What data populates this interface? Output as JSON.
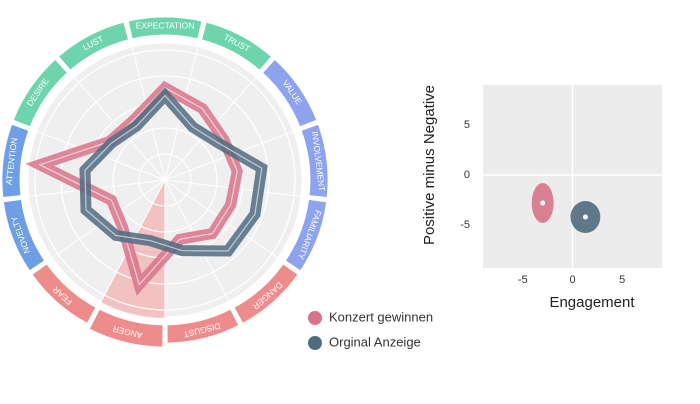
{
  "chart_data": [
    {
      "type": "radar",
      "categories": [
        "EXPECTATION",
        "TRUST",
        "VALUE",
        "INVOLVEMENT",
        "FAMILIARITY",
        "DANGER",
        "DISGUST",
        "ANGER",
        "FEAR",
        "NOVELTY",
        "ATTENTION",
        "DESIRE",
        "LUST"
      ],
      "colors": [
        "#6dd4ac",
        "#6dd4ac",
        "#8ea3ef",
        "#8ea3ef",
        "#8ea3ef",
        "#ee8c8c",
        "#ee8c8c",
        "#ee8c8c",
        "#ee8c8c",
        "#6e9fe6",
        "#6e9fe6",
        "#6dd4ac",
        "#6dd4ac"
      ],
      "rlim": [
        0,
        100
      ],
      "rticks": [
        20,
        40,
        60,
        80,
        100
      ],
      "grid": true,
      "series": [
        {
          "name": "Konzert gewinnen",
          "color": "#d9738a",
          "values": [
            71,
            62,
            55,
            56,
            54,
            55,
            47,
            83,
            49,
            44,
            97,
            52,
            52
          ]
        },
        {
          "name": "Orginal Anzeige",
          "color": "#4f6b80",
          "values": [
            65,
            46,
            50,
            75,
            74,
            73,
            56,
            48,
            57,
            65,
            62,
            50,
            47
          ]
        }
      ]
    },
    {
      "type": "scatter",
      "xlabel": "Engagement",
      "ylabel": "Positive minus Negative",
      "xlim": [
        -9,
        9
      ],
      "ylim": [
        -9.3,
        9
      ],
      "xticks": [
        -5,
        0,
        5
      ],
      "yticks": [
        -5,
        0,
        5
      ],
      "series": [
        {
          "color": "#d9738a",
          "x": [
            -3
          ],
          "y": [
            -2.8
          ],
          "xerr": [
            1.1
          ],
          "yerr": [
            2
          ]
        },
        {
          "color": "#4f6b80",
          "x": [
            1.3
          ],
          "y": [
            -4.2
          ],
          "xerr": [
            1.5
          ],
          "yerr": [
            1.6
          ]
        }
      ]
    }
  ]
}
